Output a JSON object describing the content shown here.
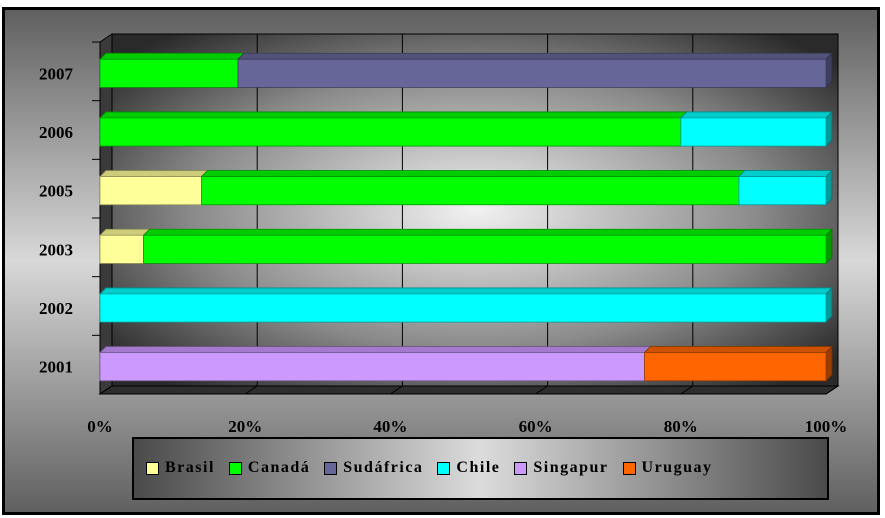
{
  "chart_data": {
    "type": "bar",
    "orientation": "horizontal",
    "stacking": "percent",
    "categories": [
      "2001",
      "2002",
      "2003",
      "2005",
      "2006",
      "2007"
    ],
    "series": [
      {
        "name": "Brasil",
        "color": "#FFFF99",
        "values": [
          0,
          0,
          6,
          14,
          0,
          0
        ]
      },
      {
        "name": "Canadá",
        "color": "#00FF00",
        "values": [
          0,
          0,
          94,
          74,
          80,
          19
        ]
      },
      {
        "name": "Sudáfrica",
        "color": "#666699",
        "values": [
          0,
          0,
          0,
          0,
          0,
          81
        ]
      },
      {
        "name": "Chile",
        "color": "#00FFFF",
        "values": [
          0,
          100,
          0,
          12,
          20,
          0
        ]
      },
      {
        "name": "Singapur",
        "color": "#CC99FF",
        "values": [
          75,
          0,
          0,
          0,
          0,
          0
        ]
      },
      {
        "name": "Uruguay",
        "color": "#FF6600",
        "values": [
          25,
          0,
          0,
          0,
          0,
          0
        ]
      }
    ],
    "x_ticks": [
      "0%",
      "20%",
      "40%",
      "60%",
      "80%",
      "100%"
    ],
    "xlim": [
      0,
      100
    ],
    "grid": true,
    "legend_position": "bottom",
    "title": "",
    "xlabel": "",
    "ylabel": ""
  }
}
